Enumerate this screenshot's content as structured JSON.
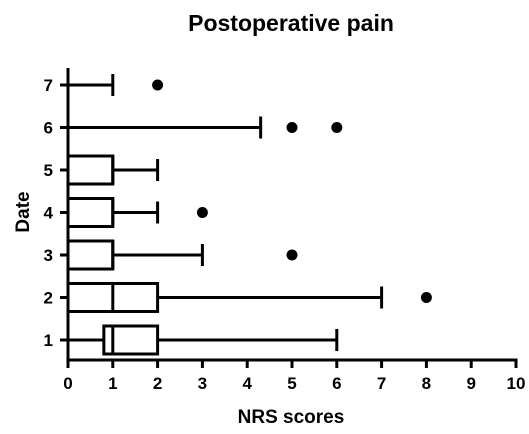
{
  "chart_data": {
    "type": "boxplot",
    "orientation": "horizontal",
    "title": "Postoperative pain",
    "xlabel": "NRS scores",
    "ylabel": "Date",
    "xlim": [
      0,
      10
    ],
    "x_ticks": [
      0,
      1,
      2,
      3,
      4,
      5,
      6,
      7,
      8,
      9,
      10
    ],
    "categories": [
      "1",
      "2",
      "3",
      "4",
      "5",
      "6",
      "7"
    ],
    "boxes": [
      {
        "category": "1",
        "whisker_low": 0,
        "q1": 0.8,
        "median": 1,
        "q3": 2,
        "whisker_high": 6,
        "outliers": []
      },
      {
        "category": "2",
        "whisker_low": 0,
        "q1": 0,
        "median": 1,
        "q3": 2,
        "whisker_high": 7,
        "outliers": [
          8
        ]
      },
      {
        "category": "3",
        "whisker_low": 0,
        "q1": 0,
        "median": 1,
        "q3": 1,
        "whisker_high": 3,
        "outliers": [
          5
        ]
      },
      {
        "category": "4",
        "whisker_low": 0,
        "q1": 0,
        "median": 1,
        "q3": 1,
        "whisker_high": 2,
        "outliers": [
          3
        ]
      },
      {
        "category": "5",
        "whisker_low": 0,
        "q1": 0,
        "median": 1,
        "q3": 1,
        "whisker_high": 2,
        "outliers": []
      },
      {
        "category": "6",
        "whisker_low": 0,
        "q1": 0,
        "median": 0,
        "q3": 0,
        "whisker_high": 4.3,
        "outliers": [
          5,
          6
        ]
      },
      {
        "category": "7",
        "whisker_low": 0,
        "q1": 0,
        "median": 0,
        "q3": 0,
        "whisker_high": 1,
        "outliers": [
          2
        ]
      }
    ],
    "grid": false,
    "legend": "none",
    "colors": {
      "stroke": "#000000",
      "box_fill": "#ffffff",
      "outlier_fill": "#000000"
    }
  }
}
